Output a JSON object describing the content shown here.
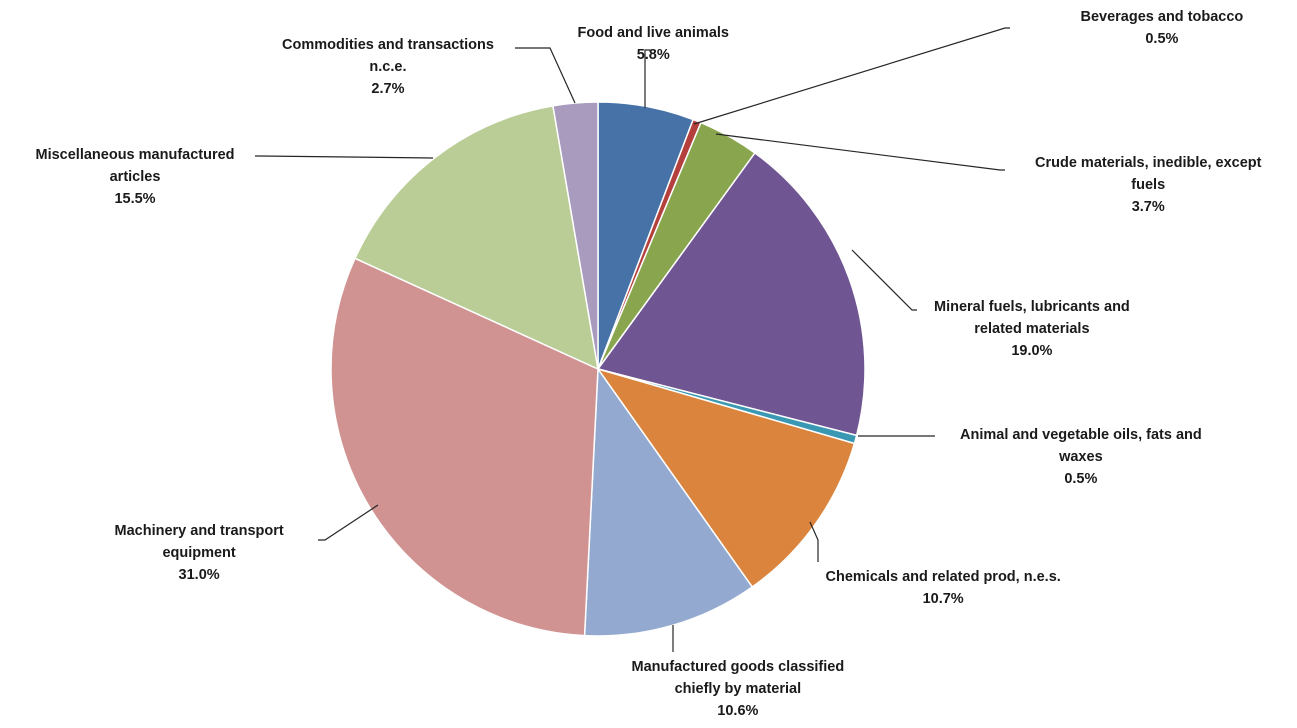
{
  "chart_data": {
    "type": "pie",
    "slices": [
      {
        "lines": [
          "Food and live animals"
        ],
        "value_label": "5.8%",
        "value": 5.8,
        "color": "#4672a8"
      },
      {
        "lines": [
          "Beverages and tobacco"
        ],
        "value_label": "0.5%",
        "value": 0.5,
        "color": "#b3403d"
      },
      {
        "lines": [
          "Crude materials, inedible, except",
          "fuels"
        ],
        "value_label": "3.7%",
        "value": 3.7,
        "color": "#89a64e"
      },
      {
        "lines": [
          "Mineral fuels, lubricants and",
          "related materials"
        ],
        "value_label": "19.0%",
        "value": 19.0,
        "color": "#6f5591"
      },
      {
        "lines": [
          "Animal and vegetable oils, fats and",
          "waxes"
        ],
        "value_label": "0.5%",
        "value": 0.5,
        "color": "#3b98b3"
      },
      {
        "lines": [
          "Chemicals and related prod, n.e.s."
        ],
        "value_label": "10.7%",
        "value": 10.7,
        "color": "#db843d"
      },
      {
        "lines": [
          "Manufactured goods classified",
          "chiefly by material"
        ],
        "value_label": "10.6%",
        "value": 10.6,
        "color": "#93a9d0"
      },
      {
        "lines": [
          "Machinery and transport",
          "equipment"
        ],
        "value_label": "31.0%",
        "value": 31.0,
        "color": "#d09392"
      },
      {
        "lines": [
          "Miscellaneous manufactured",
          "articles"
        ],
        "value_label": "15.5%",
        "value": 15.5,
        "color": "#bacd96"
      },
      {
        "lines": [
          "Commodities and transactions",
          "n.c.e."
        ],
        "value_label": "2.7%",
        "value": 2.7,
        "color": "#a99bbd"
      }
    ]
  }
}
